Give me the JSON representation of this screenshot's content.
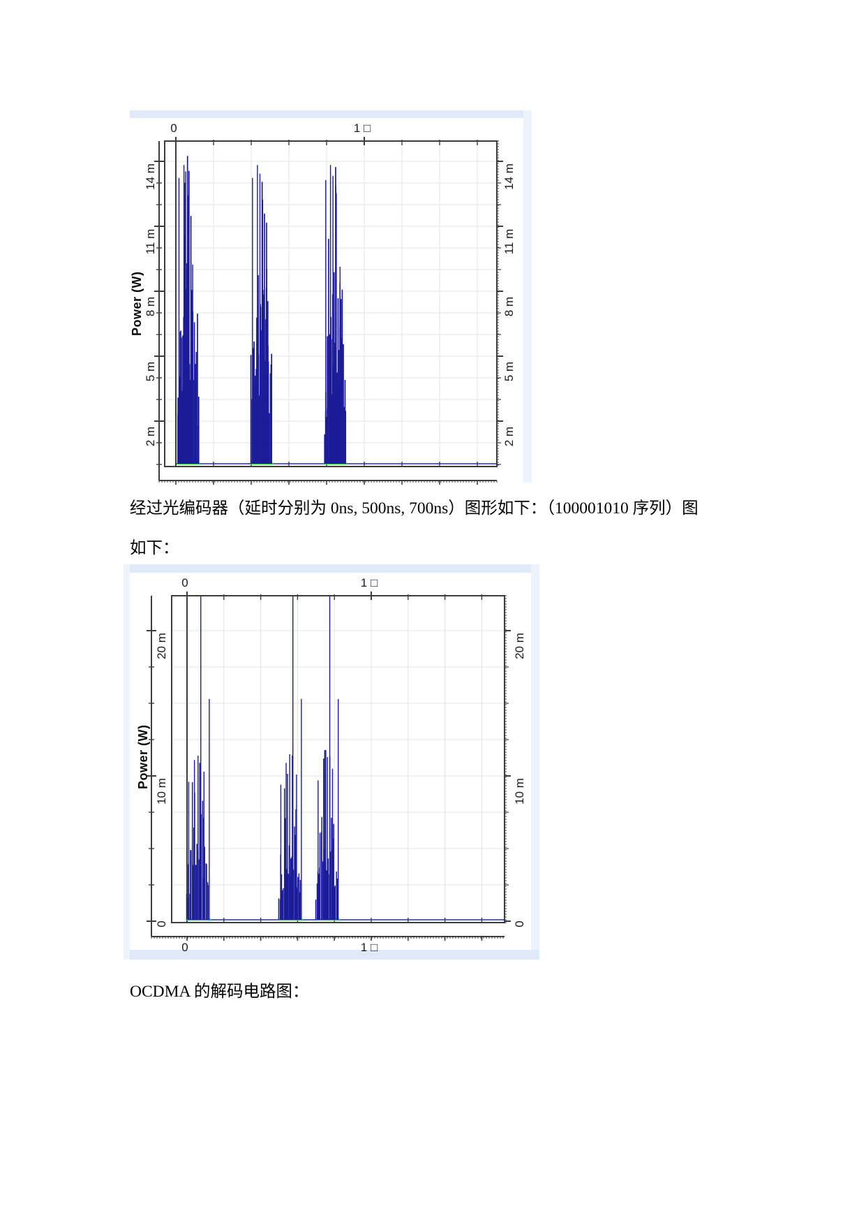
{
  "captions": {
    "between_charts_line1": "经过光编码器（延时分别为 0ns, 500ns, 700ns）图形如下：（100001010 序列）图",
    "between_charts_line2": "如下：",
    "below_charts": "OCDMA 的解码电路图："
  },
  "chart_data": [
    {
      "type": "line",
      "name": "optical-pulse-bursts-before-encoder",
      "axis_title": "Power (W)",
      "x_unit_note": "microseconds; mu glyph rendered as missing-glyph box",
      "x_range_us": [
        0,
        1.71
      ],
      "x_minor_step_us": 0.2,
      "x_top_tick_labels": [
        {
          "us": 0,
          "label": "0"
        },
        {
          "us": 1,
          "label": "1 □"
        }
      ],
      "x_bottom_tick_labels": [],
      "y_tick_labels": [
        {
          "mW": 2,
          "label": "2 m"
        },
        {
          "mW": 5,
          "label": "5 m"
        },
        {
          "mW": 8,
          "label": "8 m"
        },
        {
          "mW": 11,
          "label": "11 m"
        },
        {
          "mW": 14,
          "label": "14 m"
        }
      ],
      "y_minor_step_mW": 1,
      "y_max_mW": 14.9,
      "baseline_mW": 0,
      "grid": true,
      "series_color": "#1c1c99",
      "baseline_color": "#2b2bb0",
      "marker_color": "#2ecc2e",
      "bursts": [
        {
          "start_us": 0.01,
          "end_us": 0.12,
          "body_mW": 9.5,
          "peak_mW": 13.8,
          "talls": [
            {
              "t": 0.06,
              "mW": 13.2
            },
            {
              "t": 0.3,
              "mW": 13.8
            },
            {
              "t": 0.38,
              "mW": 13.5
            },
            {
              "t": 0.52,
              "mW": 12.4
            },
            {
              "t": 0.72,
              "mW": 9.2
            }
          ]
        },
        {
          "start_us": 0.4,
          "end_us": 0.51,
          "body_mW": 9.5,
          "peak_mW": 13.8,
          "talls": [
            {
              "t": 0.06,
              "mW": 13.2
            },
            {
              "t": 0.3,
              "mW": 13.8
            },
            {
              "t": 0.42,
              "mW": 13.4
            },
            {
              "t": 0.55,
              "mW": 12.2
            },
            {
              "t": 0.75,
              "mW": 9.0
            }
          ]
        },
        {
          "start_us": 0.79,
          "end_us": 0.9,
          "body_mW": 9.5,
          "peak_mW": 13.8,
          "talls": [
            {
              "t": 0.05,
              "mW": 13.1
            },
            {
              "t": 0.28,
              "mW": 13.8
            },
            {
              "t": 0.4,
              "mW": 13.3
            },
            {
              "t": 0.56,
              "mW": 12.5
            },
            {
              "t": 0.74,
              "mW": 9.1
            }
          ]
        }
      ],
      "green_markers_us": [
        [
          0.01,
          0.12
        ],
        [
          0.4,
          0.51
        ],
        [
          0.79,
          0.9
        ]
      ]
    },
    {
      "type": "line",
      "name": "encoded-pulse-bursts-after-optical-encoder-delays-0-500-700ns",
      "axis_title": "Power (W)",
      "x_unit_note": "microseconds; mu glyph rendered as missing-glyph box",
      "x_range_us": [
        0,
        1.72
      ],
      "x_minor_step_us": 0.2,
      "x_top_tick_labels": [
        {
          "us": 0,
          "label": "0"
        },
        {
          "us": 1,
          "label": "1 □"
        }
      ],
      "x_bottom_tick_labels": [
        {
          "us": 0,
          "label": "0"
        },
        {
          "us": 1,
          "label": "1 □"
        }
      ],
      "y_tick_labels": [
        {
          "mW": 0,
          "label": "0"
        },
        {
          "mW": 10,
          "label": "10 m"
        },
        {
          "mW": 20,
          "label": "20 m"
        }
      ],
      "y_minor_step_mW": 2.5,
      "y_max_mW": 22.4,
      "baseline_mW": 0,
      "grid": true,
      "series_color": "#1c1c99",
      "baseline_color": "#2b2bb0",
      "marker_color": "#2ecc2e",
      "bursts": [
        {
          "start_us": 0.0,
          "end_us": 0.115,
          "body_mW": 8.0,
          "peak_mW": 22.3,
          "talls": [
            {
              "t": 0.08,
              "mW": 9.5
            },
            {
              "t": 0.35,
              "mW": 11.0
            },
            {
              "t": 0.52,
              "mW": 11.3
            },
            {
              "t": 0.65,
              "mW": 22.3
            },
            {
              "t": 0.8,
              "mW": 10.2
            },
            {
              "t": 1.05,
              "mW": 15.2
            }
          ]
        },
        {
          "start_us": 0.5,
          "end_us": 0.615,
          "body_mW": 8.0,
          "peak_mW": 22.3,
          "talls": [
            {
              "t": 0.08,
              "mW": 9.3
            },
            {
              "t": 0.33,
              "mW": 10.8
            },
            {
              "t": 0.5,
              "mW": 11.4
            },
            {
              "t": 0.65,
              "mW": 22.3
            },
            {
              "t": 0.82,
              "mW": 10.0
            },
            {
              "t": 1.05,
              "mW": 15.2
            }
          ]
        },
        {
          "start_us": 0.7,
          "end_us": 0.815,
          "body_mW": 8.0,
          "peak_mW": 22.3,
          "talls": [
            {
              "t": 0.1,
              "mW": 9.6
            },
            {
              "t": 0.36,
              "mW": 11.1
            },
            {
              "t": 0.54,
              "mW": 11.2
            },
            {
              "t": 0.65,
              "mW": 22.3
            },
            {
              "t": 0.78,
              "mW": 10.4
            },
            {
              "t": 1.05,
              "mW": 15.2
            }
          ]
        }
      ],
      "green_markers_us": [
        [
          0.0,
          0.125
        ],
        [
          0.5,
          0.625
        ],
        [
          0.7,
          0.825
        ]
      ]
    }
  ]
}
